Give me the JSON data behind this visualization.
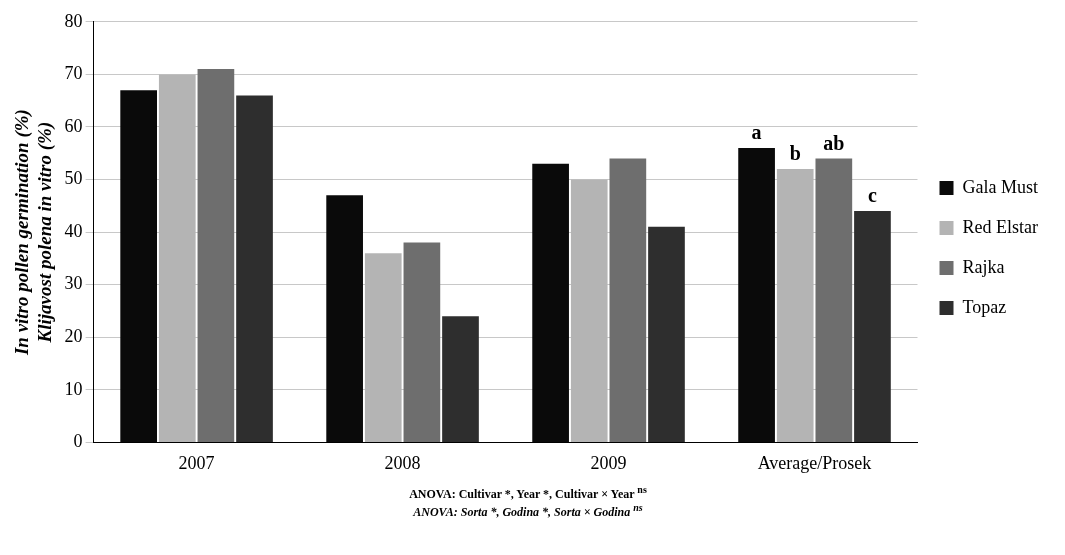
{
  "chart_data": {
    "type": "bar",
    "categories": [
      "2007",
      "2008",
      "2009",
      "Average/Prosek"
    ],
    "ylabel": "In vitro pollen germination (%)\nKlijavost polena in vitro (%)",
    "ylim": [
      0,
      80
    ],
    "yticks": [
      0,
      10,
      20,
      30,
      40,
      50,
      60,
      70,
      80
    ],
    "grid": "y",
    "legend": "right",
    "series": [
      {
        "name": "Gala Must",
        "color": "#0a0a0a",
        "values": [
          67,
          47,
          53,
          56
        ],
        "value_labels": [
          null,
          null,
          null,
          "a"
        ]
      },
      {
        "name": "Red Elstar",
        "color": "#b4b4b4",
        "values": [
          70,
          36,
          50,
          52
        ],
        "value_labels": [
          null,
          null,
          null,
          "b"
        ]
      },
      {
        "name": "Rajka",
        "color": "#6e6e6e",
        "values": [
          71,
          38,
          54,
          54
        ],
        "value_labels": [
          null,
          null,
          null,
          "ab"
        ]
      },
      {
        "name": "Topaz",
        "color": "#2e2e2e",
        "values": [
          66,
          24,
          41,
          44
        ],
        "value_labels": [
          null,
          null,
          null,
          "c"
        ]
      }
    ],
    "annotations": [
      "ANOVA: Cultivar *, Year *, Cultivar × Year $^{ns}$",
      "ANOVA: Sorta *, Godina *, Sorta × Godina $^{ns}$"
    ]
  }
}
